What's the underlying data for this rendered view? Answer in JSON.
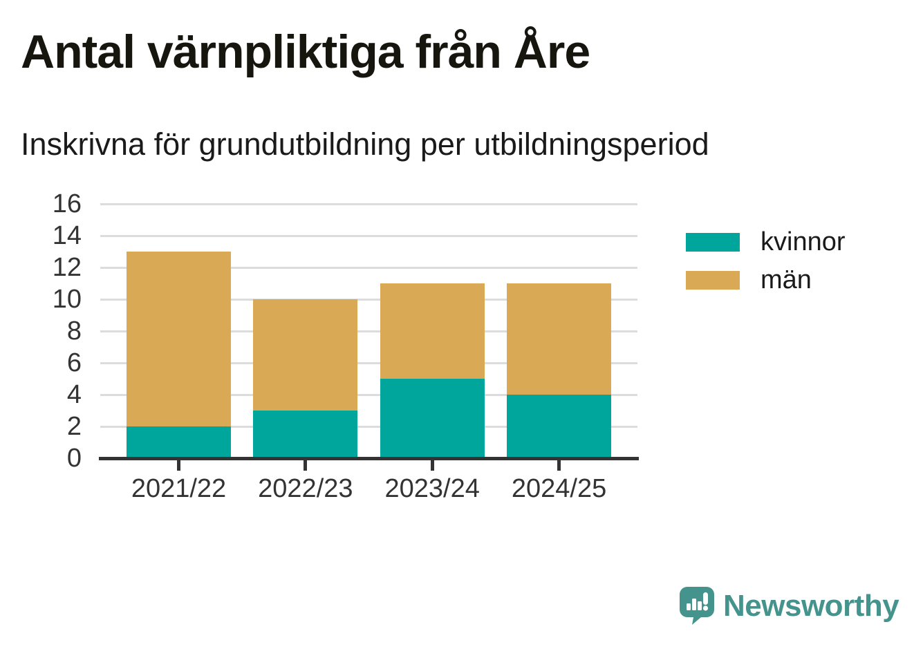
{
  "title": "Antal värnpliktiga från Åre",
  "subtitle": "Inskrivna för grundutbildning per utbildningsperiod",
  "chart_data": {
    "type": "bar",
    "stacked": true,
    "title": "Antal värnpliktiga från Åre",
    "subtitle": "Inskrivna för grundutbildning per utbildningsperiod",
    "categories": [
      "2021/22",
      "2022/23",
      "2023/24",
      "2024/25"
    ],
    "series": [
      {
        "name": "kvinnor",
        "color": "#00a59b",
        "values": [
          2,
          3,
          5,
          4
        ]
      },
      {
        "name": "män",
        "color": "#d9a955",
        "values": [
          11,
          7,
          6,
          7
        ]
      }
    ],
    "totals": [
      13,
      10,
      11,
      11
    ],
    "xlabel": "",
    "ylabel": "",
    "ylim": [
      0,
      16
    ],
    "yticks": [
      0,
      2,
      4,
      6,
      8,
      10,
      12,
      14,
      16
    ],
    "grid": true,
    "legend_position": "right"
  },
  "legend": {
    "items": [
      {
        "label": "kvinnor",
        "color": "#00a59b"
      },
      {
        "label": "män",
        "color": "#d9a955"
      }
    ]
  },
  "colors": {
    "kvinnor": "#00a59b",
    "man": "#d9a955",
    "gridline": "#dcdcdc",
    "axis": "#333333",
    "brand": "#45938d"
  },
  "branding": {
    "logo_text": "Newsworthy",
    "logo_icon": "speech-bubble-bar-chart-exclamation"
  }
}
